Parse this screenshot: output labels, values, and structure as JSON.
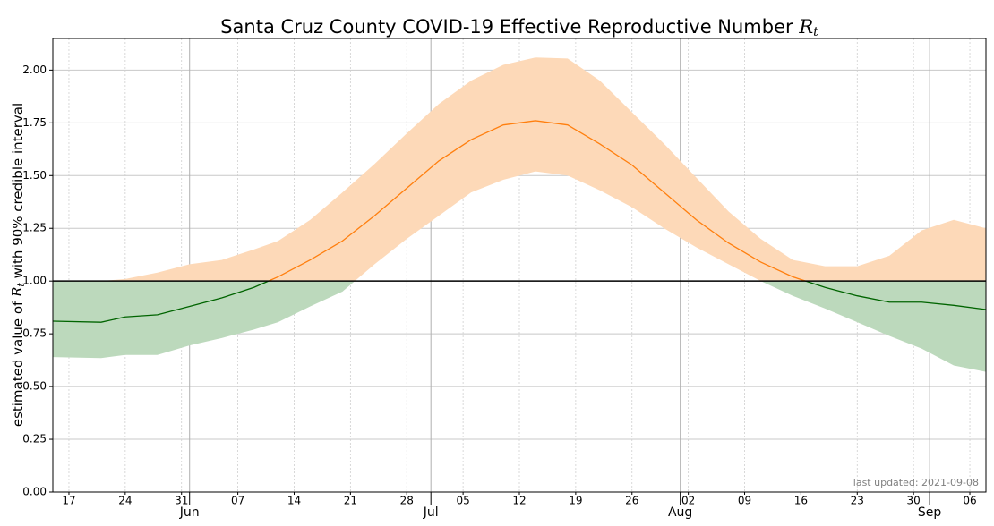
{
  "chart_data": {
    "type": "band",
    "title": {
      "text": "Santa Cruz County COVID-19 Effective Reproductive Number ",
      "symbol": "R",
      "subscript": "t"
    },
    "y_label": {
      "before": "estimated value of ",
      "symbol": "R",
      "subscript": "t",
      "after": " with 90% credible interval"
    },
    "annotation": "last updated: 2021-09-08",
    "x": [
      "05-15",
      "05-21",
      "05-24",
      "05-28",
      "06-01",
      "06-05",
      "06-09",
      "06-12",
      "06-16",
      "06-20",
      "06-24",
      "06-28",
      "07-02",
      "07-06",
      "07-10",
      "07-14",
      "07-18",
      "07-22",
      "07-26",
      "07-30",
      "08-03",
      "08-07",
      "08-11",
      "08-15",
      "08-19",
      "08-23",
      "08-27",
      "08-31",
      "09-04",
      "09-08"
    ],
    "median": [
      0.81,
      0.805,
      0.83,
      0.84,
      0.88,
      0.92,
      0.97,
      1.02,
      1.1,
      1.19,
      1.31,
      1.44,
      1.57,
      1.67,
      1.74,
      1.76,
      1.74,
      1.65,
      1.55,
      1.42,
      1.29,
      1.18,
      1.09,
      1.02,
      0.97,
      0.93,
      0.9,
      0.9,
      0.885,
      0.865
    ],
    "lower": [
      0.64,
      0.635,
      0.65,
      0.65,
      0.695,
      0.73,
      0.77,
      0.805,
      0.88,
      0.95,
      1.08,
      1.2,
      1.31,
      1.42,
      1.48,
      1.52,
      1.5,
      1.43,
      1.35,
      1.25,
      1.16,
      1.08,
      1.0,
      0.93,
      0.87,
      0.805,
      0.74,
      0.68,
      0.6,
      0.57
    ],
    "upper": [
      1.0,
      1.0,
      1.01,
      1.04,
      1.08,
      1.1,
      1.15,
      1.19,
      1.29,
      1.42,
      1.555,
      1.7,
      1.84,
      1.95,
      2.025,
      2.06,
      2.055,
      1.95,
      1.8,
      1.65,
      1.49,
      1.33,
      1.2,
      1.1,
      1.07,
      1.07,
      1.12,
      1.24,
      1.29,
      1.25
    ],
    "threshold": 1,
    "above_color": "#ff7f0e",
    "above_fill": "#fdd9b8",
    "below_color": "#006400",
    "below_fill": "#bcd9bc",
    "xlim": [
      "05-15",
      "09-08"
    ],
    "xticks": [
      {
        "value": "05-17",
        "label": "17"
      },
      {
        "value": "05-24",
        "label": "24"
      },
      {
        "value": "05-31",
        "label": "31"
      },
      {
        "value": "06-07",
        "label": "07"
      },
      {
        "value": "06-14",
        "label": "14"
      },
      {
        "value": "06-21",
        "label": "21"
      },
      {
        "value": "06-28",
        "label": "28"
      },
      {
        "value": "07-05",
        "label": "05"
      },
      {
        "value": "07-12",
        "label": "12"
      },
      {
        "value": "07-19",
        "label": "19"
      },
      {
        "value": "07-26",
        "label": "26"
      },
      {
        "value": "08-02",
        "label": "02"
      },
      {
        "value": "08-09",
        "label": "09"
      },
      {
        "value": "08-16",
        "label": "16"
      },
      {
        "value": "08-23",
        "label": "23"
      },
      {
        "value": "08-30",
        "label": "30"
      },
      {
        "value": "09-06",
        "label": "06"
      }
    ],
    "month_ticks": [
      {
        "value": "06-01",
        "label": "Jun"
      },
      {
        "value": "07-01",
        "label": "Jul"
      },
      {
        "value": "08-01",
        "label": "Aug"
      },
      {
        "value": "09-01",
        "label": "Sep"
      }
    ],
    "ylim": [
      0,
      2.15
    ],
    "yticks": [
      {
        "value": 0,
        "label": "0.00"
      },
      {
        "value": 0.25,
        "label": "0.25"
      },
      {
        "value": 0.5,
        "label": "0.50"
      },
      {
        "value": 0.75,
        "label": "0.75"
      },
      {
        "value": 1,
        "label": "1.00"
      },
      {
        "value": 1.25,
        "label": "1.25"
      },
      {
        "value": 1.5,
        "label": "1.50"
      },
      {
        "value": 1.75,
        "label": "1.75"
      },
      {
        "value": 2,
        "label": "2.00"
      }
    ],
    "grid": true
  }
}
